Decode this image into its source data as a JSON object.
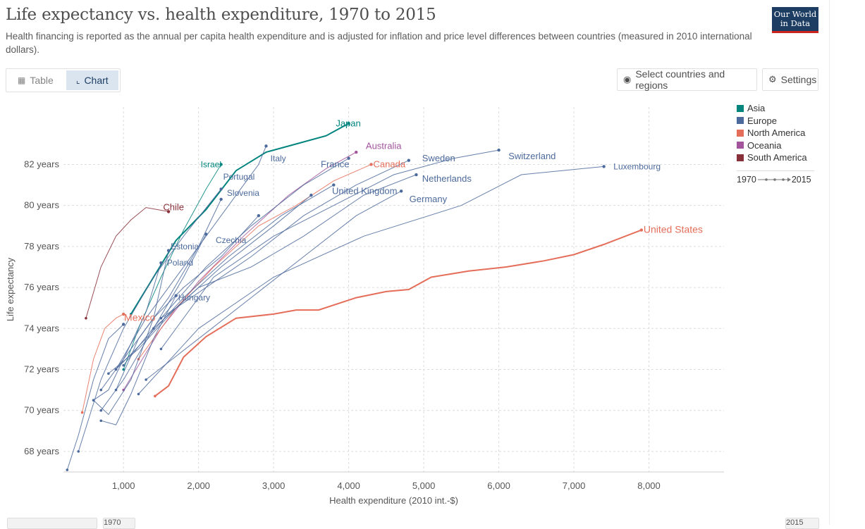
{
  "header": {
    "title": "Life expectancy vs. health expenditure, 1970 to 2015",
    "subtitle": "Health financing is reported as the annual per capita health expenditure and is adjusted for inflation and price level differences between countries (measured in 2010 international dollars).",
    "logo_line1": "Our World",
    "logo_line2": "in Data"
  },
  "tabs": [
    {
      "label": "Table",
      "icon": "table-icon",
      "active": false
    },
    {
      "label": "Chart",
      "icon": "chart-icon",
      "active": true
    }
  ],
  "controls": {
    "select_label": "Select countries and regions",
    "settings_label": "Settings"
  },
  "legend": {
    "items": [
      {
        "label": "Asia",
        "color": "#00847e"
      },
      {
        "label": "Europe",
        "color": "#4c6a9c"
      },
      {
        "label": "North America",
        "color": "#e56e5a"
      },
      {
        "label": "Oceania",
        "color": "#a2559c"
      },
      {
        "label": "South America",
        "color": "#883039"
      }
    ],
    "timeline_start": "1970",
    "timeline_end": "2015"
  },
  "timeline": {
    "start": "1970",
    "end": "2015"
  },
  "chart_data": {
    "type": "line",
    "xlabel": "Health expenditure (2010 int.-$)",
    "ylabel": "Life expectancy",
    "xlim": [
      200,
      9000
    ],
    "ylim": [
      67,
      84.8
    ],
    "x_ticks": [
      1000,
      2000,
      3000,
      4000,
      5000,
      6000,
      7000,
      8000
    ],
    "x_tick_labels": [
      "1,000",
      "2,000",
      "3,000",
      "4,000",
      "5,000",
      "6,000",
      "7,000",
      "8,000"
    ],
    "y_ticks": [
      68,
      70,
      72,
      74,
      76,
      78,
      80,
      82
    ],
    "y_tick_labels": [
      "68 years",
      "70 years",
      "72 years",
      "74 years",
      "76 years",
      "78 years",
      "80 years",
      "82 years"
    ],
    "grid": true,
    "series": [
      {
        "name": "United States",
        "region": "North America",
        "label_size": 14,
        "x": [
          1420,
          1600,
          1800,
          2100,
          2500,
          3000,
          3300,
          3600,
          4100,
          4500,
          4800,
          5100,
          5600,
          6100,
          6600,
          7000,
          7400,
          7900
        ],
        "y": [
          70.7,
          71.2,
          72.6,
          73.6,
          74.5,
          74.7,
          74.9,
          74.9,
          75.5,
          75.8,
          75.9,
          76.5,
          76.8,
          77.0,
          77.3,
          77.6,
          78.1,
          78.8
        ]
      },
      {
        "name": "Japan",
        "region": "Asia",
        "label_size": 13,
        "x": [
          1100,
          1400,
          1700,
          2100,
          2500,
          2900,
          3300,
          3700,
          4000
        ],
        "y": [
          74.7,
          76.5,
          78.3,
          79.8,
          81.7,
          82.6,
          83.0,
          83.4,
          84.0
        ]
      },
      {
        "name": "Israel",
        "region": "Asia",
        "label_size": 12,
        "x": [
          1000,
          1200,
          1500,
          1800,
          2100,
          2300
        ],
        "y": [
          72.0,
          74.0,
          76.5,
          78.8,
          80.8,
          82.0
        ]
      },
      {
        "name": "Australia",
        "region": "Oceania",
        "label_size": 13,
        "x": [
          1000,
          1500,
          2000,
          2600,
          3200,
          3700,
          4100
        ],
        "y": [
          71.0,
          74.0,
          76.3,
          78.5,
          80.5,
          81.8,
          82.6
        ]
      },
      {
        "name": "Chile",
        "region": "South America",
        "label_size": 13,
        "x": [
          500,
          700,
          900,
          1100,
          1300,
          1600
        ],
        "y": [
          74.5,
          77.0,
          78.5,
          79.3,
          79.9,
          79.7
        ]
      },
      {
        "name": "Mexico",
        "region": "North America",
        "label_size": 14,
        "x": [
          450,
          600,
          750,
          900,
          1000
        ],
        "y": [
          69.9,
          72.5,
          74.0,
          74.5,
          74.7
        ]
      },
      {
        "name": "Canada",
        "region": "North America",
        "label_size": 13,
        "x": [
          1200,
          1700,
          2200,
          2800,
          3300,
          3800,
          4300
        ],
        "y": [
          72.5,
          75.0,
          77.0,
          79.0,
          80.0,
          81.2,
          82.0
        ]
      },
      {
        "name": "Switzerland",
        "region": "Europe",
        "label_size": 13,
        "x": [
          1500,
          2200,
          3000,
          3800,
          4600,
          5400,
          6000
        ],
        "y": [
          73.0,
          76.5,
          78.5,
          80.0,
          81.5,
          82.3,
          82.7
        ]
      },
      {
        "name": "Luxembourg",
        "region": "Europe",
        "label_size": 12,
        "x": [
          1200,
          2000,
          3000,
          4200,
          5500,
          6300,
          7400
        ],
        "y": [
          70.8,
          74.0,
          76.5,
          78.5,
          80.0,
          81.5,
          81.9
        ]
      },
      {
        "name": "Sweden",
        "region": "Europe",
        "label_size": 13,
        "x": [
          1500,
          2100,
          2700,
          3400,
          4100,
          4800
        ],
        "y": [
          74.5,
          76.0,
          77.5,
          79.5,
          81.0,
          82.2
        ]
      },
      {
        "name": "Netherlands",
        "region": "Europe",
        "label_size": 13,
        "x": [
          1400,
          2000,
          2700,
          3400,
          4200,
          4900
        ],
        "y": [
          74.0,
          76.0,
          77.0,
          78.5,
          80.5,
          81.5
        ]
      },
      {
        "name": "Germany",
        "region": "Europe",
        "label_size": 13,
        "x": [
          1300,
          2000,
          2700,
          3400,
          4100,
          4700
        ],
        "y": [
          71.5,
          73.5,
          75.5,
          77.5,
          79.5,
          80.7
        ]
      },
      {
        "name": "United Kingdom",
        "region": "Europe",
        "label_size": 13,
        "x": [
          900,
          1300,
          1800,
          2400,
          3100,
          3800
        ],
        "y": [
          72.0,
          73.5,
          75.5,
          77.5,
          79.5,
          81.0
        ]
      },
      {
        "name": "France",
        "region": "Europe",
        "label_size": 13,
        "x": [
          1000,
          1500,
          2100,
          2700,
          3400,
          4000
        ],
        "y": [
          72.2,
          74.5,
          77.0,
          79.0,
          81.0,
          82.3
        ]
      },
      {
        "name": "Italy",
        "region": "Europe",
        "label_size": 12,
        "x": [
          900,
          1300,
          1800,
          2300,
          2800,
          2900
        ],
        "y": [
          72.0,
          74.5,
          77.0,
          79.5,
          82.0,
          82.9
        ]
      },
      {
        "name": "Portugal",
        "region": "Europe",
        "label_size": 12,
        "x": [
          400,
          700,
          1000,
          1400,
          1800,
          2300
        ],
        "y": [
          68.0,
          71.5,
          74.0,
          76.5,
          78.5,
          80.8
        ]
      },
      {
        "name": "Slovenia",
        "region": "Europe",
        "label_size": 12,
        "x": [
          900,
          1200,
          1600,
          2000,
          2300
        ],
        "y": [
          71.0,
          73.5,
          75.5,
          78.0,
          80.3
        ]
      },
      {
        "name": "Czechia",
        "region": "Europe",
        "label_size": 12,
        "x": [
          700,
          1000,
          1400,
          1800,
          2100
        ],
        "y": [
          70.0,
          71.5,
          74.0,
          76.5,
          78.6
        ]
      },
      {
        "name": "Estonia",
        "region": "Europe",
        "label_size": 12,
        "x": [
          600,
          800,
          1100,
          1400,
          1600
        ],
        "y": [
          70.5,
          69.8,
          71.5,
          74.5,
          77.8
        ]
      },
      {
        "name": "Poland",
        "region": "Europe",
        "label_size": 12,
        "x": [
          600,
          800,
          1000,
          1300,
          1500
        ],
        "y": [
          70.5,
          71.0,
          72.5,
          74.8,
          77.2
        ]
      },
      {
        "name": "Hungary",
        "region": "Europe",
        "label_size": 12,
        "x": [
          700,
          900,
          1100,
          1400,
          1700
        ],
        "y": [
          69.5,
          69.3,
          70.8,
          73.5,
          75.6
        ]
      },
      {
        "name": "",
        "region": "Europe",
        "label_size": 0,
        "x": [
          250,
          400,
          600,
          800,
          1000
        ],
        "y": [
          67.1,
          68.8,
          71.5,
          73.5,
          74.2
        ]
      },
      {
        "name": "",
        "region": "Europe",
        "label_size": 0,
        "x": [
          700,
          1000,
          1400,
          1800,
          2300,
          2800
        ],
        "y": [
          71.0,
          72.5,
          74.5,
          76.0,
          77.5,
          79.5
        ]
      },
      {
        "name": "",
        "region": "Europe",
        "label_size": 0,
        "x": [
          800,
          1200,
          1700,
          2300,
          3000,
          3500
        ],
        "y": [
          71.8,
          73.0,
          75.0,
          77.0,
          79.0,
          80.5
        ]
      }
    ],
    "labels": [
      {
        "name": "United States",
        "x": 7900,
        "y": 78.8
      },
      {
        "name": "Japan",
        "x": 3800,
        "y": 84.0
      },
      {
        "name": "Israel",
        "x": 2000,
        "y": 82.0
      },
      {
        "name": "Australia",
        "x": 4200,
        "y": 82.9
      },
      {
        "name": "Chile",
        "x": 1500,
        "y": 79.9
      },
      {
        "name": "Mexico",
        "x": 980,
        "y": 74.5
      },
      {
        "name": "Canada",
        "x": 4300,
        "y": 82.0
      },
      {
        "name": "Switzerland",
        "x": 6100,
        "y": 82.4
      },
      {
        "name": "Luxembourg",
        "x": 7500,
        "y": 81.9
      },
      {
        "name": "Sweden",
        "x": 4950,
        "y": 82.3
      },
      {
        "name": "Netherlands",
        "x": 4950,
        "y": 81.3
      },
      {
        "name": "Germany",
        "x": 4780,
        "y": 80.3
      },
      {
        "name": "United Kingdom",
        "x": 3750,
        "y": 80.7
      },
      {
        "name": "France",
        "x": 3600,
        "y": 82.0
      },
      {
        "name": "Italy",
        "x": 2930,
        "y": 82.3
      },
      {
        "name": "Portugal",
        "x": 2300,
        "y": 81.4
      },
      {
        "name": "Slovenia",
        "x": 2350,
        "y": 80.6
      },
      {
        "name": "Czechia",
        "x": 2200,
        "y": 78.3
      },
      {
        "name": "Estonia",
        "x": 1600,
        "y": 78.0
      },
      {
        "name": "Poland",
        "x": 1550,
        "y": 77.2
      },
      {
        "name": "Hungary",
        "x": 1700,
        "y": 75.5
      }
    ]
  }
}
